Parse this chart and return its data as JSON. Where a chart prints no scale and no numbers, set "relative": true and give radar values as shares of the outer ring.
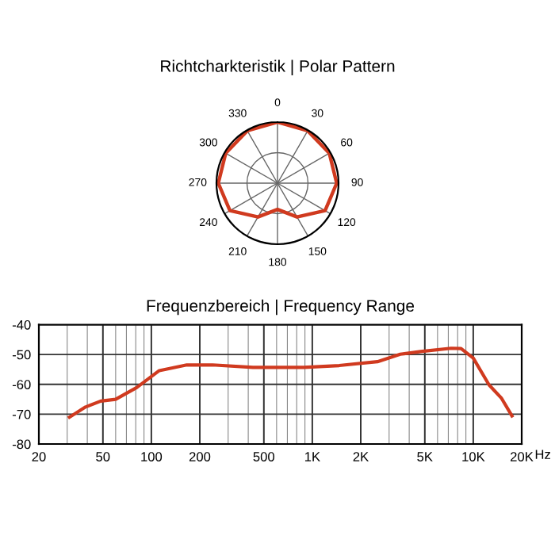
{
  "chart_data": [
    {
      "type": "radar",
      "title": "Richtcharkteristik | Polar Pattern",
      "relative": true,
      "grid": true,
      "categories": [
        "0",
        "30",
        "60",
        "90",
        "120",
        "150",
        "180",
        "210",
        "240",
        "270",
        "300",
        "330"
      ],
      "series": [
        {
          "color": "#d03a1f",
          "values": [
            1.0,
            0.99,
            0.98,
            0.97,
            0.9,
            0.64,
            0.43,
            0.64,
            0.9,
            0.97,
            0.98,
            0.99
          ]
        }
      ]
    },
    {
      "type": "line",
      "title": "Frequenzbereich | Frequency Range",
      "log": "x",
      "grid": true,
      "xlim": [
        20,
        20000
      ],
      "xticks": [
        20,
        50,
        100,
        200,
        500,
        {
          "value": 1000,
          "label": "1K"
        },
        {
          "value": 2000,
          "label": "2K"
        },
        {
          "value": 5000,
          "label": "5K"
        },
        {
          "value": 10000,
          "label": "10K"
        },
        {
          "value": 20000,
          "label": "20K"
        }
      ],
      "xlabel": "Hz",
      "ylim": [
        -80,
        -40
      ],
      "yticks": [
        -40,
        -50,
        -60,
        -70,
        -80
      ],
      "series": [
        {
          "color": "#d03a1f",
          "x": [
            31,
            39,
            48.5,
            60,
            81,
            112,
            166,
            240,
            428,
            885,
            1470,
            2540,
            3520,
            4710,
            7280,
            8400,
            10000,
            12540,
            15000,
            17400
          ],
          "values": [
            -71.0,
            -67.6,
            -65.6,
            -65.0,
            -61.1,
            -55.4,
            -53.5,
            -53.5,
            -54.3,
            -54.3,
            -53.7,
            -52.4,
            -49.9,
            -49.0,
            -47.9,
            -48.0,
            -51.2,
            -60.2,
            -64.7,
            -70.6
          ]
        }
      ]
    }
  ]
}
